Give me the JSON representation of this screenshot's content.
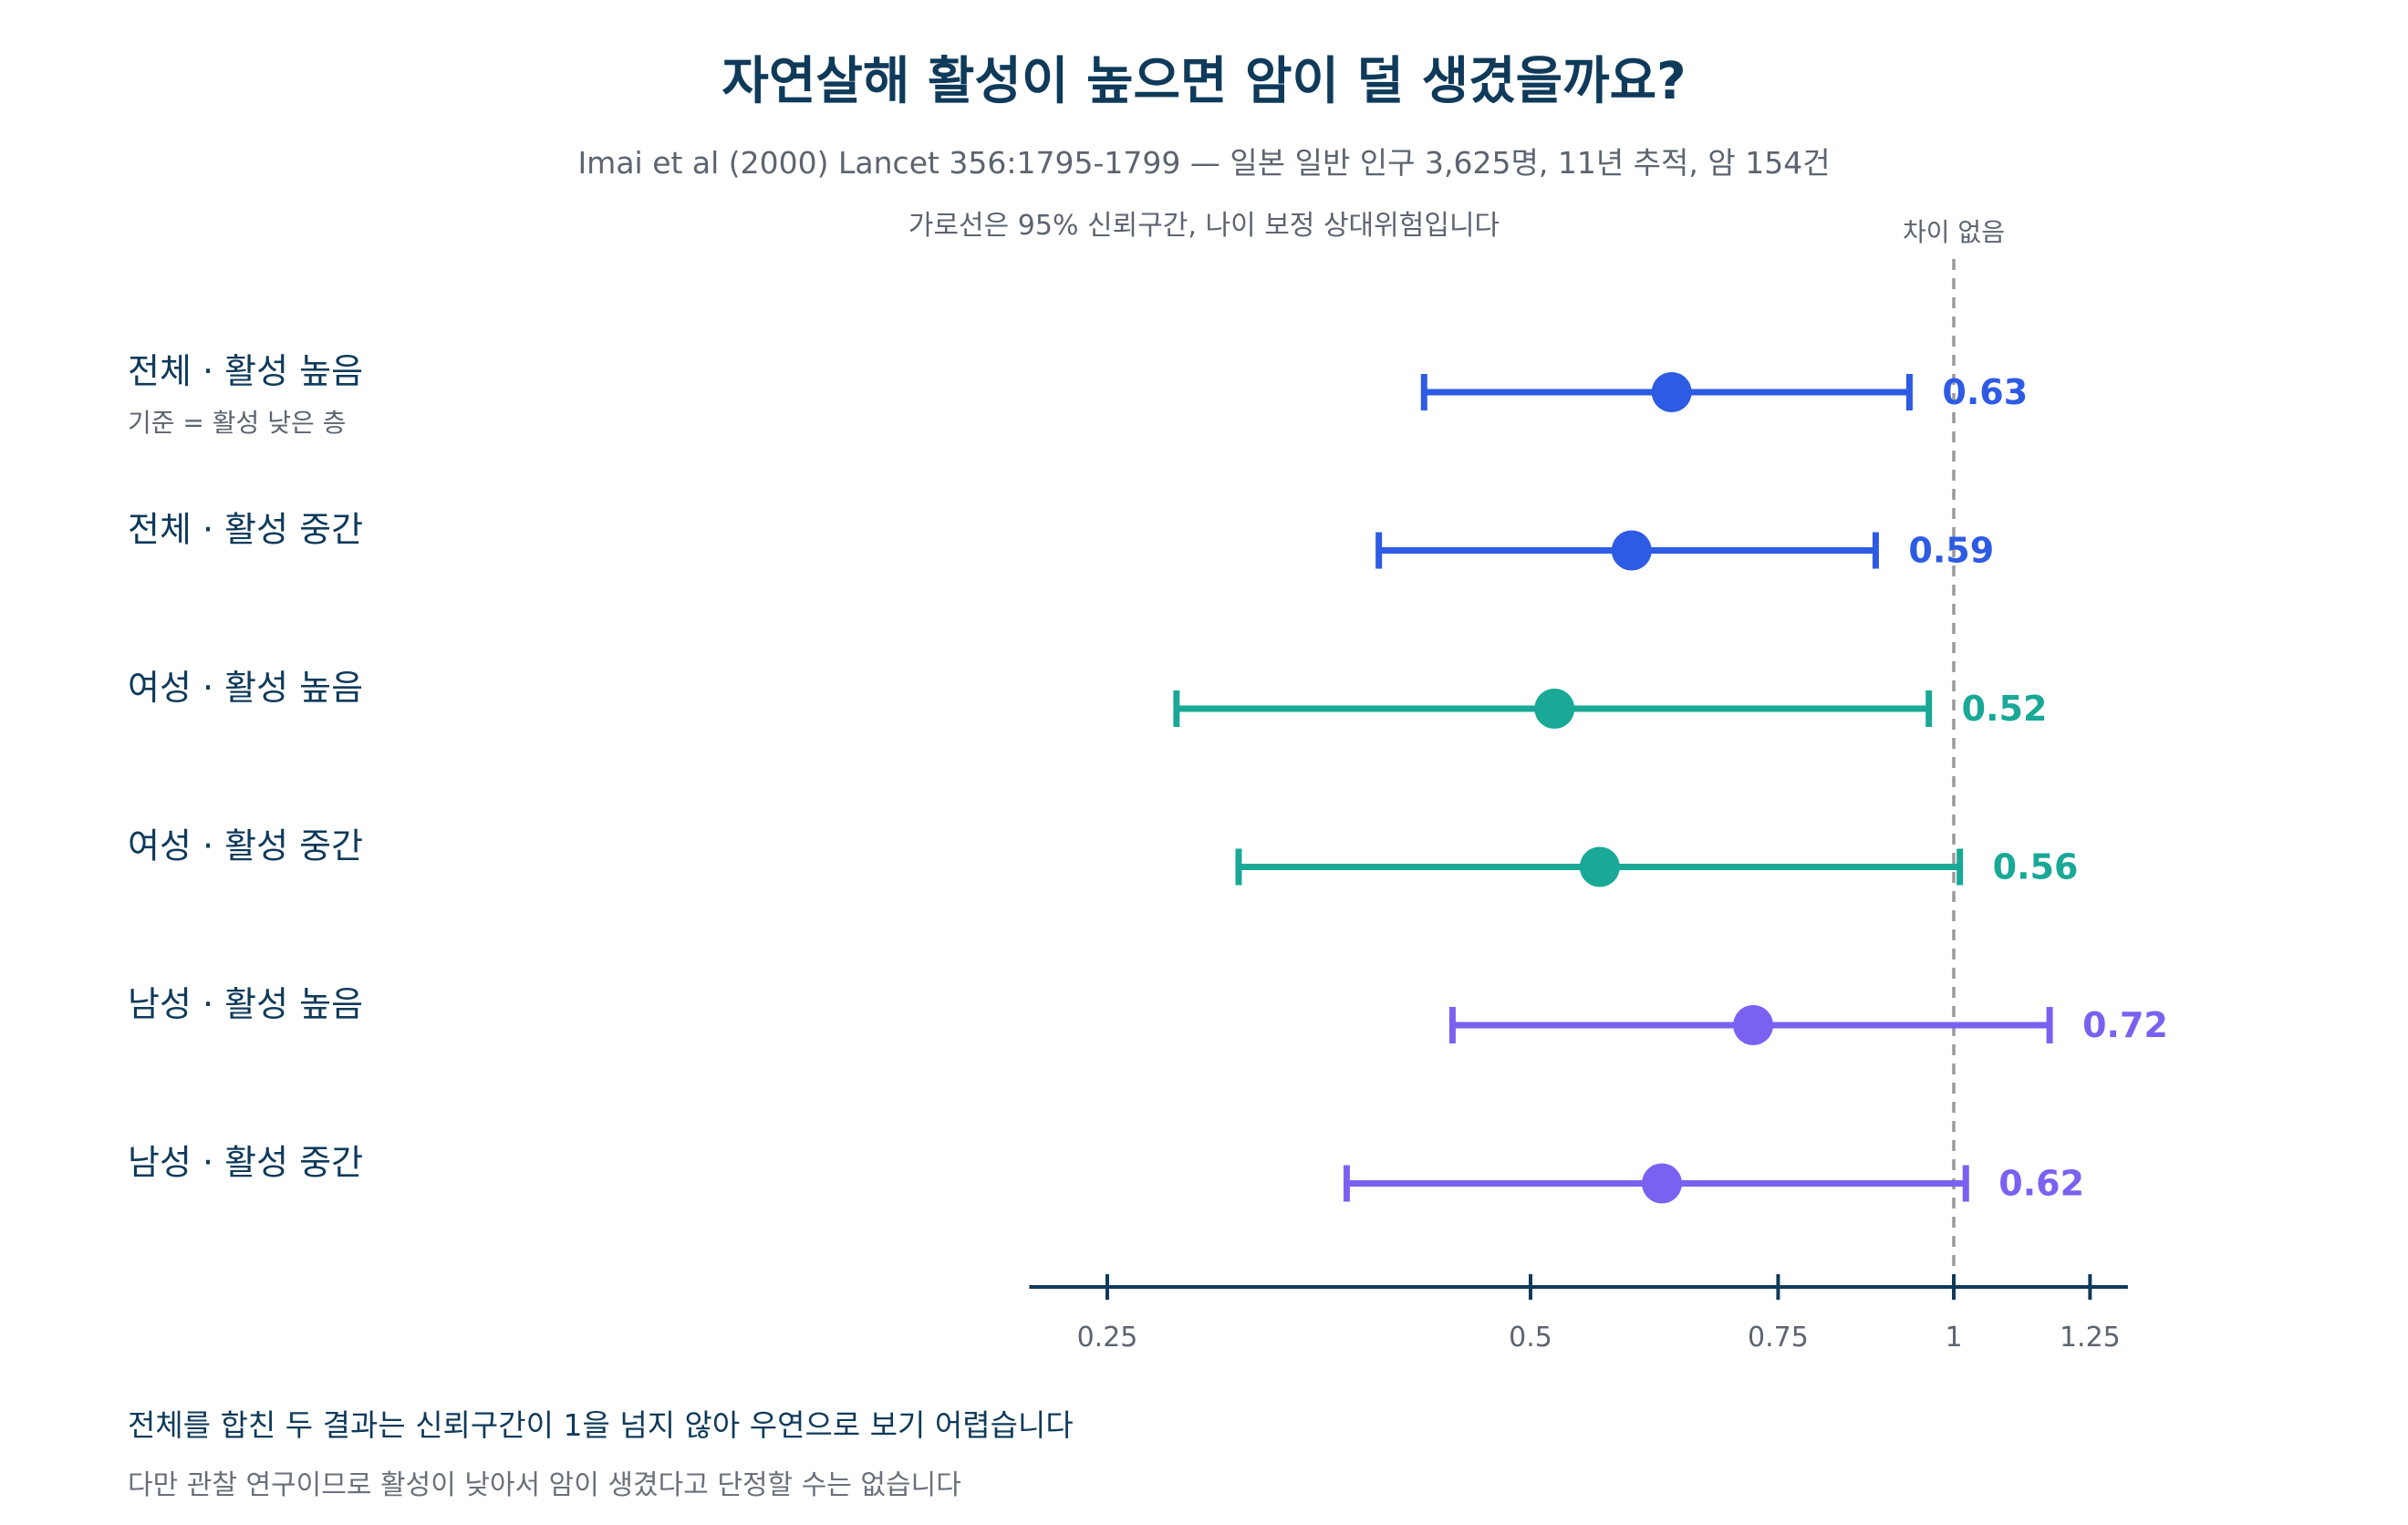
{
  "header": {
    "title": "자연살해 활성이 높으면 암이 덜 생겼을까요?",
    "subtitle": "Imai et al (2000) Lancet 356:1795-1799 — 일본 일반 인구 3,625명, 11년 추적, 암 154건",
    "note": "가로선은 95% 신뢰구간, 나이 보정 상대위험입니다"
  },
  "footer": {
    "line1": "전체를 합친 두 결과는 신뢰구간이 1을 넘지 않아 우연으로 보기 어렵습니다",
    "line2": "다만 관찰 연구이므로 활성이 낮아서 암이 생겼다고 단정할 수는 없습니다"
  },
  "chart_data": {
    "type": "forest",
    "x_scale": "log",
    "xlim": [
      0.22,
      1.33
    ],
    "xticks": [
      0.25,
      0.5,
      0.75,
      1,
      1.25
    ],
    "xtick_labels": [
      "0.25",
      "0.5",
      "0.75",
      "1",
      "1.25"
    ],
    "reference_line": {
      "x": 1,
      "label": "차이 없음"
    },
    "reference_note": "기준 = 활성 낮은 층",
    "colors": {
      "overall": "#2d5be3",
      "women": "#1aa897",
      "men": "#7b61f0"
    },
    "rows": [
      {
        "label": "전체 · 활성 높음",
        "group": "overall",
        "estimate": 0.63,
        "ci_low": 0.42,
        "ci_high": 0.93,
        "value_label": "0.63"
      },
      {
        "label": "전체 · 활성 중간",
        "group": "overall",
        "estimate": 0.59,
        "ci_low": 0.39,
        "ci_high": 0.88,
        "value_label": "0.59"
      },
      {
        "label": "여성 · 활성 높음",
        "group": "women",
        "estimate": 0.52,
        "ci_low": 0.28,
        "ci_high": 0.96,
        "value_label": "0.52"
      },
      {
        "label": "여성 · 활성 중간",
        "group": "women",
        "estimate": 0.56,
        "ci_low": 0.31,
        "ci_high": 1.01,
        "value_label": "0.56"
      },
      {
        "label": "남성 · 활성 높음",
        "group": "men",
        "estimate": 0.72,
        "ci_low": 0.44,
        "ci_high": 1.17,
        "value_label": "0.72"
      },
      {
        "label": "남성 · 활성 중간",
        "group": "men",
        "estimate": 0.62,
        "ci_low": 0.37,
        "ci_high": 1.02,
        "value_label": "0.62"
      }
    ]
  }
}
